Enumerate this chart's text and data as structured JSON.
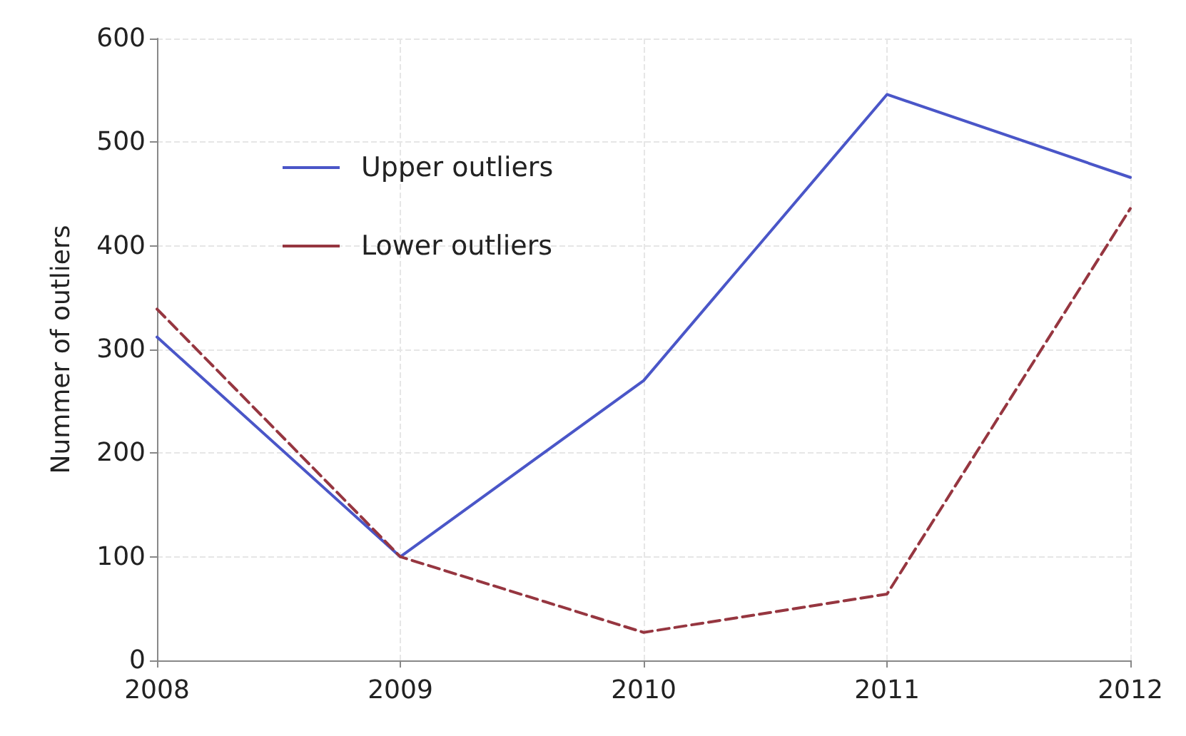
{
  "chart_data": {
    "type": "line",
    "ylabel": "Nummer of outliers",
    "x": [
      2008,
      2009,
      2010,
      2011,
      2012
    ],
    "xlim": [
      2008,
      2012
    ],
    "xticks": [
      2008,
      2009,
      2010,
      2011,
      2012
    ],
    "ylim": [
      0,
      600
    ],
    "yticks": [
      0,
      100,
      200,
      300,
      400,
      500,
      600
    ],
    "grid": true,
    "legend": "top left",
    "marker": "none",
    "series": [
      {
        "name": "Upper outliers",
        "color": "#4a56c8",
        "line_style": "solid",
        "values": [
          312,
          100,
          270,
          546,
          466
        ]
      },
      {
        "name": "Lower outliers",
        "color": "#963640",
        "line_style": "dashed",
        "values": [
          339,
          100,
          27,
          64,
          436
        ]
      }
    ]
  }
}
